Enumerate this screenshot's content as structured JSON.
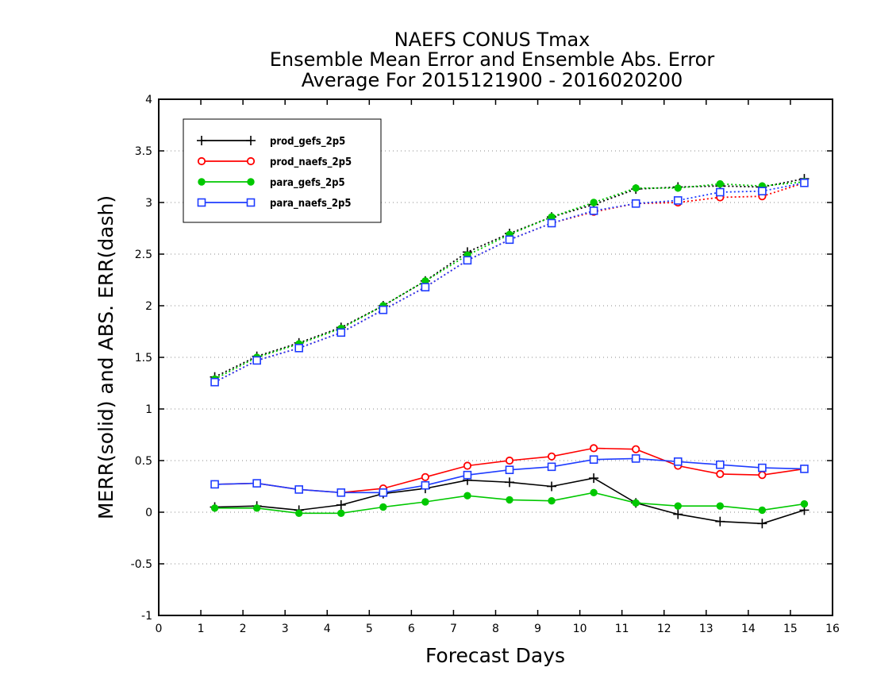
{
  "chart_data": {
    "type": "line",
    "title": "NAEFS CONUS Tmax",
    "subtitle": [
      "Ensemble Mean Error and Ensemble Abs. Error",
      "Average For 2015121900 - 2016020200"
    ],
    "xlabel": "Forecast Days",
    "ylabel": "MERR(solid) and ABS. ERR(dash)",
    "xlim": [
      0,
      16
    ],
    "ylim": [
      -1,
      4
    ],
    "xticks": [
      "0",
      "1",
      "2",
      "3",
      "4",
      "5",
      "6",
      "7",
      "8",
      "9",
      "10",
      "11",
      "12",
      "13",
      "14",
      "15",
      "16"
    ],
    "yticks": [
      "-1",
      "-0.5",
      "0",
      "0.5",
      "1",
      "1.5",
      "2",
      "2.5",
      "3",
      "3.5",
      "4"
    ],
    "grid": "horizontal dotted",
    "legend_position": "top-left",
    "x": [
      1.33,
      2.33,
      3.33,
      4.33,
      5.33,
      6.33,
      7.33,
      8.33,
      9.33,
      10.33,
      11.33,
      12.33,
      13.33,
      14.33,
      15.33
    ],
    "series": [
      {
        "name": "prod_gefs_2p5",
        "color": "#000000",
        "marker": "plus",
        "merr": [
          0.05,
          0.06,
          0.02,
          0.07,
          0.18,
          0.23,
          0.31,
          0.29,
          0.25,
          0.33,
          0.09,
          -0.02,
          -0.09,
          -0.11,
          0.02
        ],
        "abs_err": [
          1.31,
          1.51,
          1.64,
          1.79,
          2.0,
          2.24,
          2.52,
          2.7,
          2.86,
          2.98,
          3.13,
          3.15,
          3.16,
          3.15,
          3.23
        ]
      },
      {
        "name": "prod_naefs_2p5",
        "color": "#ff0000",
        "marker": "circle",
        "merr": [
          0.27,
          0.28,
          0.22,
          0.19,
          0.23,
          0.34,
          0.45,
          0.5,
          0.54,
          0.62,
          0.61,
          0.45,
          0.37,
          0.36,
          0.42
        ],
        "abs_err": [
          1.26,
          1.47,
          1.59,
          1.74,
          1.96,
          2.18,
          2.44,
          2.64,
          2.8,
          2.91,
          2.99,
          3.0,
          3.05,
          3.06,
          3.19
        ]
      },
      {
        "name": "para_gefs_2p5",
        "color": "#00c800",
        "marker": "filled-circle",
        "merr": [
          0.04,
          0.04,
          -0.01,
          -0.01,
          0.05,
          0.1,
          0.16,
          0.12,
          0.11,
          0.19,
          0.09,
          0.06,
          0.06,
          0.02,
          0.08
        ],
        "abs_err": [
          1.29,
          1.5,
          1.63,
          1.78,
          2.0,
          2.24,
          2.49,
          2.69,
          2.86,
          3.0,
          3.14,
          3.14,
          3.18,
          3.16,
          3.2
        ]
      },
      {
        "name": "para_naefs_2p5",
        "color": "#1e3cff",
        "marker": "square",
        "merr": [
          0.27,
          0.28,
          0.22,
          0.19,
          0.19,
          0.26,
          0.36,
          0.41,
          0.44,
          0.51,
          0.52,
          0.49,
          0.46,
          0.43,
          0.42
        ],
        "abs_err": [
          1.26,
          1.47,
          1.59,
          1.74,
          1.96,
          2.18,
          2.44,
          2.64,
          2.8,
          2.92,
          2.99,
          3.02,
          3.1,
          3.11,
          3.19
        ]
      }
    ]
  }
}
